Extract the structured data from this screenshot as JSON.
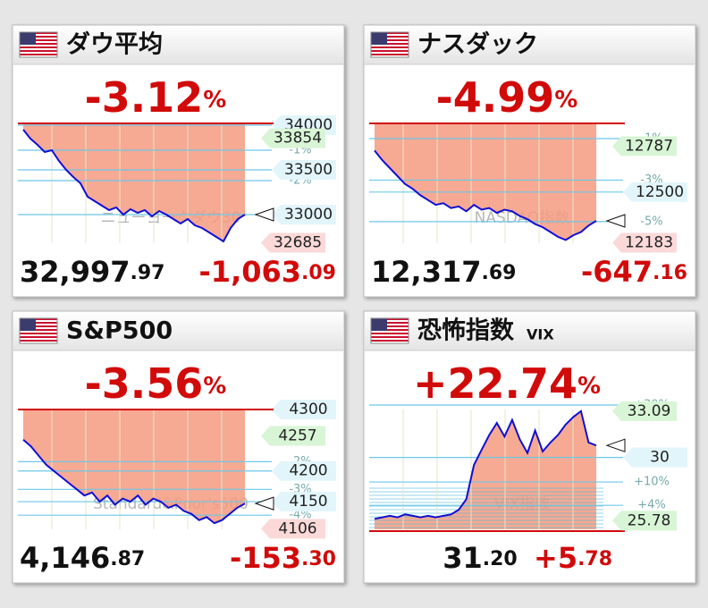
{
  "panels": [
    {
      "title": "ダウ平均",
      "change_pct": "-3.12%",
      "price": "32,997.97",
      "change": "-1,063.09",
      "watermark": "ニューヨークダウ30",
      "chart": {
        "type": "line",
        "ylim": [
          32680,
          34020
        ],
        "yticks": [
          34000,
          33500,
          33000
        ],
        "high": 33854,
        "low": 32685,
        "pct_ticks": [
          {
            "value": 33720,
            "label": "-1%"
          },
          {
            "value": 33380,
            "label": "-2%"
          }
        ],
        "values": [
          33950,
          33850,
          33780,
          33700,
          33720,
          33600,
          33500,
          33420,
          33350,
          33200,
          33150,
          33100,
          33050,
          33080,
          33000,
          33060,
          33020,
          33050,
          32980,
          33040,
          33000,
          32950,
          32900,
          32950,
          32880,
          32850,
          32800,
          32750,
          32700,
          32850,
          32950,
          33000
        ]
      }
    },
    {
      "title": "ナスダック",
      "change_pct": "-4.99%",
      "price": "12,317.69",
      "change": "-647.16",
      "watermark": "NASDAQ指数",
      "chart": {
        "type": "line",
        "ylim": [
          12180,
          12930
        ],
        "yticks": [
          12500
        ],
        "high": 12787,
        "low": 12183,
        "pct_ticks": [
          {
            "value": 12835,
            "label": "-1%"
          },
          {
            "value": 12575,
            "label": "-3%"
          },
          {
            "value": 12315,
            "label": "-5%"
          }
        ],
        "values": [
          12760,
          12700,
          12650,
          12600,
          12550,
          12520,
          12480,
          12450,
          12420,
          12430,
          12400,
          12410,
          12380,
          12420,
          12390,
          12400,
          12370,
          12390,
          12380,
          12350,
          12330,
          12300,
          12280,
          12250,
          12220,
          12200,
          12230,
          12250,
          12290,
          12320
        ]
      }
    },
    {
      "title": "S&P500",
      "change_pct": "-3.56%",
      "price": "4,146.87",
      "change": "-153.30",
      "watermark": "Standard&Poor's500",
      "chart": {
        "type": "line",
        "ylim": [
          4105,
          4300
        ],
        "yticks": [
          4300,
          4200,
          4150
        ],
        "high": 4257,
        "low": 4106,
        "pct_ticks": [
          {
            "value": 4215,
            "label": "-2%"
          },
          {
            "value": 4170,
            "label": "-3%"
          },
          {
            "value": 4128,
            "label": "-4%"
          }
        ],
        "values": [
          4251,
          4240,
          4225,
          4210,
          4200,
          4190,
          4180,
          4170,
          4160,
          4165,
          4150,
          4160,
          4145,
          4155,
          4150,
          4160,
          4145,
          4155,
          4150,
          4140,
          4145,
          4135,
          4130,
          4120,
          4125,
          4115,
          4120,
          4130,
          4140,
          4147
        ]
      }
    },
    {
      "title": "恐怖指数",
      "subtitle": "VIX",
      "change_pct": "+22.74%",
      "price": "31.20",
      "change": "+5.78",
      "watermark": "VIX指数",
      "chart": {
        "type": "line",
        "ylim": [
          25.2,
          33.2
        ],
        "yticks": [
          30
        ],
        "high": 33.09,
        "low": 25.78,
        "pct_ticks": [
          {
            "value": 33.5,
            "label": "+30%"
          },
          {
            "value": 28.36,
            "label": "+10%"
          },
          {
            "value": 26.8,
            "label": "+4%"
          }
        ],
        "values": [
          25.9,
          26.0,
          26.1,
          26.0,
          26.2,
          26.1,
          26.0,
          26.1,
          26.0,
          26.1,
          26.2,
          26.5,
          27.2,
          29.5,
          30.5,
          31.5,
          32.3,
          31.4,
          32.5,
          31.2,
          30.3,
          31.8,
          30.4,
          31.0,
          31.5,
          32.2,
          32.7,
          33.09,
          31.0,
          30.8
        ]
      }
    }
  ]
}
